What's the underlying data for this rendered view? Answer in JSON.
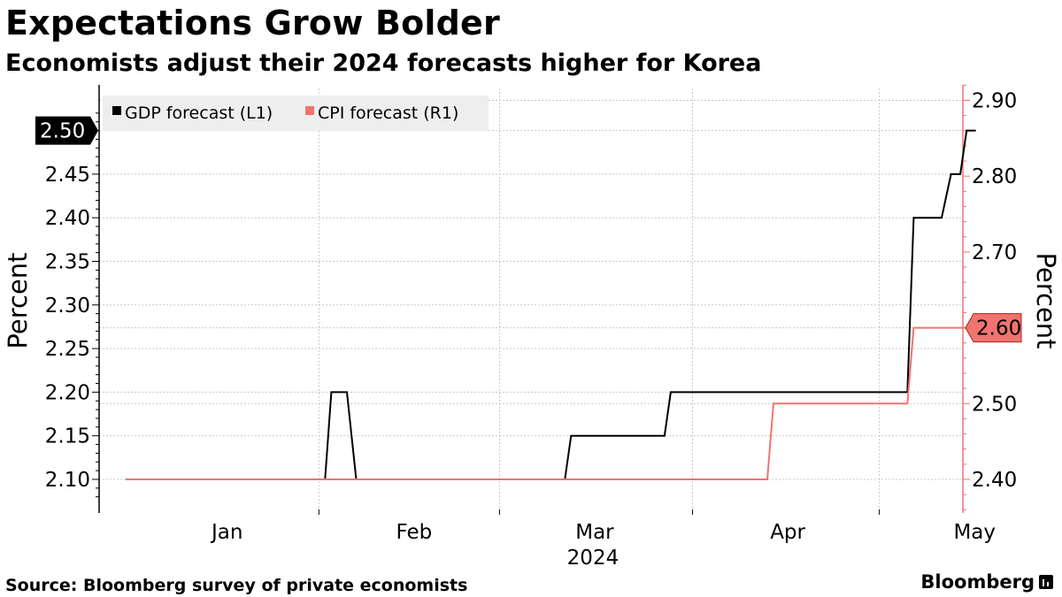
{
  "header": {
    "title": "Expectations Grow Bolder",
    "subtitle": "Economists adjust their 2024 forecasts higher for Korea"
  },
  "footer": {
    "source": "Source: Bloomberg survey of private economists",
    "brand": "Bloomberg"
  },
  "colors": {
    "gdp": "#000000",
    "cpi": "#f07470",
    "grid": "#c8c8c8",
    "legend_bg": "#eeeeee"
  },
  "chart_data": {
    "type": "line",
    "title": "Expectations Grow Bolder",
    "subtitle": "Economists adjust their 2024 forecasts higher for Korea",
    "x_unit": "day of 2024",
    "x_range": [
      -4,
      130
    ],
    "x_ticks": [
      {
        "label": "Jan",
        "at": 16
      },
      {
        "label": "Feb",
        "at": 46
      },
      {
        "label": "Mar",
        "at": 75
      },
      {
        "label": "Apr",
        "at": 106
      },
      {
        "label": "May",
        "at": 136
      }
    ],
    "x_gridlines": [
      31,
      60,
      91,
      121
    ],
    "xlabel": "2024",
    "xlabel_at": 75,
    "left_axis": {
      "label": "Percent",
      "range": [
        2.06,
        2.54
      ],
      "ticks": [
        "2.10",
        "2.15",
        "2.20",
        "2.25",
        "2.30",
        "2.35",
        "2.40",
        "2.45"
      ],
      "last_value_label": "2.50"
    },
    "right_axis": {
      "label": "Percent",
      "range": [
        2.355,
        2.925
      ],
      "ticks": [
        "2.40",
        "2.50",
        "2.70",
        "2.80",
        "2.90"
      ],
      "last_value_label": "2.60"
    },
    "legend": [
      {
        "name": "GDP forecast (L1)",
        "color": "#000000"
      },
      {
        "name": "CPI forecast (R1)",
        "color": "#f07470"
      }
    ],
    "series": [
      {
        "name": "GDP forecast (L1)",
        "axis": "left",
        "color": "#000000",
        "points": [
          [
            0,
            2.1
          ],
          [
            32,
            2.1
          ],
          [
            33,
            2.2
          ],
          [
            35.5,
            2.2
          ],
          [
            37,
            2.1
          ],
          [
            70.5,
            2.1
          ],
          [
            71.5,
            2.15
          ],
          [
            86.5,
            2.15
          ],
          [
            87.5,
            2.2
          ],
          [
            125.5,
            2.2
          ],
          [
            126.5,
            2.4
          ],
          [
            131,
            2.4
          ],
          [
            132.5,
            2.45
          ],
          [
            134,
            2.45
          ],
          [
            135,
            2.5
          ],
          [
            136.5,
            2.5
          ]
        ]
      },
      {
        "name": "CPI forecast (R1)",
        "axis": "right",
        "color": "#f07470",
        "points": [
          [
            0,
            2.4
          ],
          [
            103,
            2.4
          ],
          [
            104,
            2.5
          ],
          [
            125.5,
            2.5
          ],
          [
            126.5,
            2.6
          ],
          [
            136.5,
            2.6
          ]
        ]
      }
    ]
  }
}
